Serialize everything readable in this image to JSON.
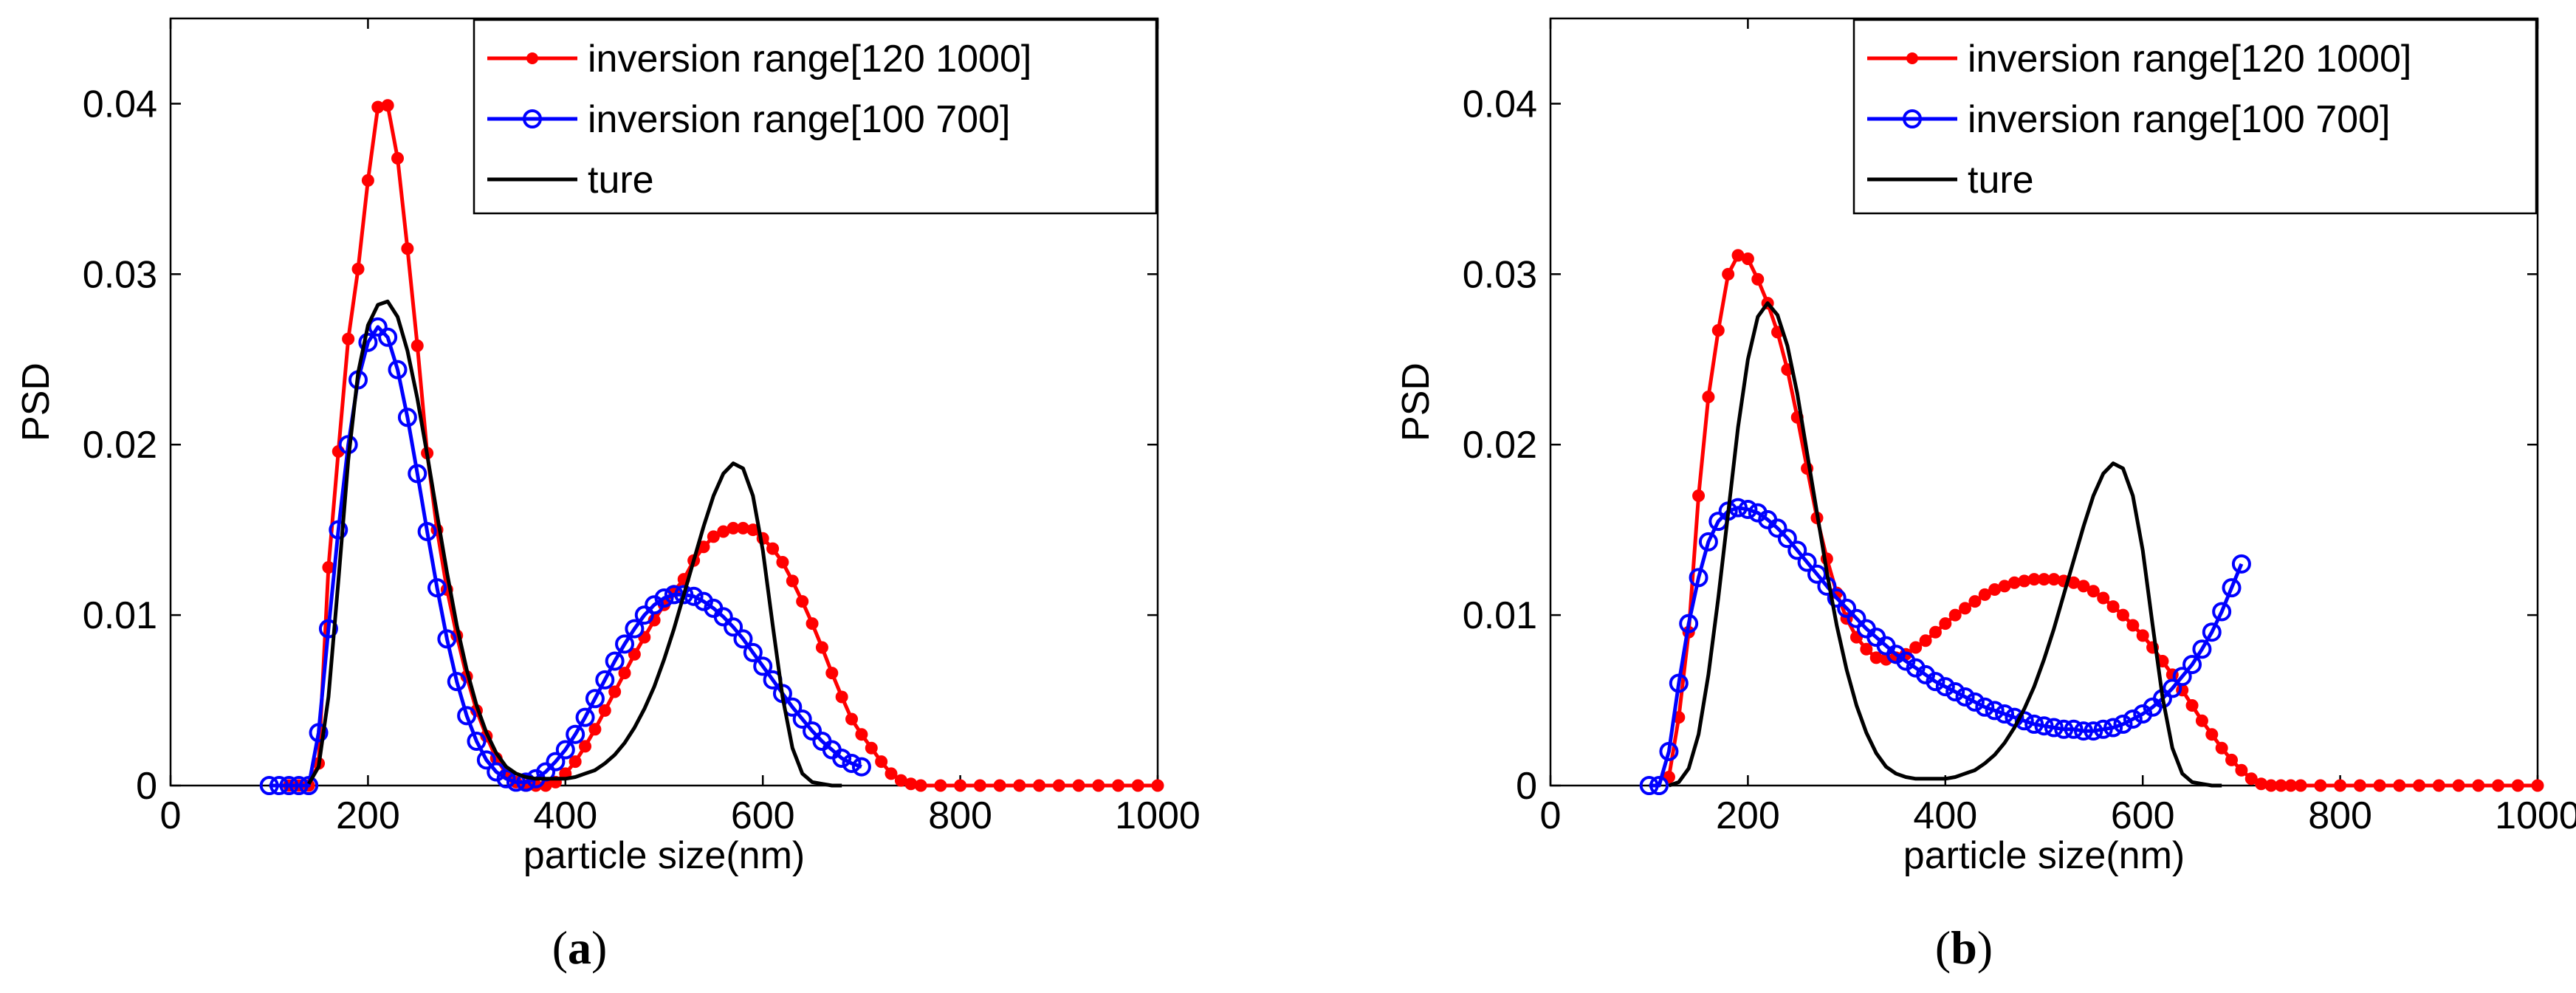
{
  "chart_data": [
    {
      "type": "line",
      "panel_label": "a",
      "title": "",
      "xlabel": "particle size(nm)",
      "ylabel": "PSD",
      "xlim": [
        0,
        1000
      ],
      "ylim": [
        0,
        0.045
      ],
      "xticks": [
        0,
        200,
        400,
        600,
        800,
        1000
      ],
      "xtick_labels": [
        "0",
        "200",
        "400",
        "600",
        "800",
        "1000"
      ],
      "yticks": [
        0,
        0.01,
        0.02,
        0.03,
        0.04
      ],
      "ytick_labels": [
        "0",
        "0.01",
        "0.02",
        "0.03",
        "0.04"
      ],
      "grid": false,
      "legend_position": "top-right",
      "series": [
        {
          "name": "inversion range[120 1000]",
          "color": "#ff0000",
          "marker": "dot",
          "x": [
            120,
            130,
            140,
            150,
            160,
            170,
            180,
            190,
            200,
            210,
            220,
            230,
            240,
            250,
            260,
            270,
            280,
            290,
            300,
            310,
            320,
            330,
            340,
            350,
            360,
            370,
            380,
            390,
            400,
            410,
            420,
            430,
            440,
            450,
            460,
            470,
            480,
            490,
            500,
            510,
            520,
            530,
            540,
            550,
            560,
            570,
            580,
            590,
            600,
            610,
            620,
            630,
            640,
            650,
            660,
            670,
            680,
            690,
            700,
            710,
            720,
            730,
            740,
            750,
            760,
            780,
            800,
            820,
            840,
            860,
            880,
            900,
            920,
            940,
            960,
            980,
            1000
          ],
          "y": [
            0,
            0,
            0,
            0.0013,
            0.0128,
            0.0196,
            0.0262,
            0.0303,
            0.0355,
            0.0398,
            0.0399,
            0.0368,
            0.0315,
            0.0258,
            0.0195,
            0.015,
            0.0115,
            0.0088,
            0.0064,
            0.0044,
            0.0029,
            0.0016,
            0.0007,
            0.0002,
            0,
            0,
            0,
            0.0002,
            0.0007,
            0.0014,
            0.0023,
            0.0033,
            0.0044,
            0.0055,
            0.0066,
            0.0077,
            0.0087,
            0.0097,
            0.0106,
            0.0114,
            0.0121,
            0.0132,
            0.014,
            0.0146,
            0.0149,
            0.0151,
            0.0151,
            0.015,
            0.0145,
            0.0139,
            0.0131,
            0.012,
            0.0108,
            0.0095,
            0.0081,
            0.0066,
            0.0052,
            0.0039,
            0.003,
            0.0022,
            0.0014,
            0.0007,
            0.0003,
            0.0001,
            0,
            0,
            0,
            0,
            0,
            0,
            0,
            0,
            0,
            0,
            0,
            0,
            0
          ]
        },
        {
          "name": "inversion range[100 700]",
          "color": "#0000ff",
          "marker": "circle",
          "x": [
            100,
            110,
            120,
            130,
            140,
            150,
            160,
            170,
            180,
            190,
            200,
            210,
            220,
            230,
            240,
            250,
            260,
            270,
            280,
            290,
            300,
            310,
            320,
            330,
            340,
            350,
            360,
            370,
            380,
            390,
            400,
            410,
            420,
            430,
            440,
            450,
            460,
            470,
            480,
            490,
            500,
            510,
            520,
            530,
            540,
            550,
            560,
            570,
            580,
            590,
            600,
            610,
            620,
            630,
            640,
            650,
            660,
            670,
            680,
            690,
            700
          ],
          "y": [
            0,
            0,
            0,
            0,
            0,
            0.0031,
            0.0092,
            0.015,
            0.02,
            0.0238,
            0.026,
            0.0269,
            0.0263,
            0.0244,
            0.0216,
            0.0183,
            0.0149,
            0.0116,
            0.0086,
            0.0061,
            0.0041,
            0.0026,
            0.0015,
            0.0008,
            0.0004,
            0.0002,
            0.0002,
            0.0004,
            0.0008,
            0.0014,
            0.0021,
            0.003,
            0.004,
            0.0051,
            0.0062,
            0.0073,
            0.0083,
            0.0092,
            0.01,
            0.0106,
            0.011,
            0.0112,
            0.0112,
            0.0111,
            0.0108,
            0.0104,
            0.0099,
            0.0093,
            0.0086,
            0.0078,
            0.007,
            0.0062,
            0.0054,
            0.0046,
            0.0039,
            0.0032,
            0.0026,
            0.0021,
            0.0016,
            0.0013,
            0.0011
          ]
        },
        {
          "name": "ture",
          "color": "#000000",
          "marker": "none",
          "x": [
            140,
            150,
            160,
            170,
            180,
            190,
            200,
            210,
            220,
            230,
            240,
            250,
            260,
            270,
            280,
            290,
            300,
            310,
            320,
            330,
            340,
            350,
            360,
            370,
            380,
            390,
            400,
            410,
            420,
            430,
            440,
            450,
            460,
            470,
            480,
            490,
            500,
            510,
            520,
            530,
            540,
            550,
            560,
            570,
            580,
            590,
            600,
            610,
            620,
            630,
            640,
            650,
            660,
            670,
            680
          ],
          "y": [
            0.0001,
            0.0011,
            0.0052,
            0.012,
            0.0191,
            0.0242,
            0.027,
            0.0282,
            0.0284,
            0.0275,
            0.0255,
            0.0227,
            0.0194,
            0.0159,
            0.0125,
            0.0094,
            0.0068,
            0.0047,
            0.0031,
            0.0019,
            0.0011,
            0.0007,
            0.0005,
            0.0004,
            0.0004,
            0.0004,
            0.0004,
            0.0005,
            0.0007,
            0.0009,
            0.0013,
            0.0018,
            0.0025,
            0.0034,
            0.0045,
            0.0058,
            0.0074,
            0.0092,
            0.0112,
            0.0132,
            0.0152,
            0.017,
            0.0183,
            0.0189,
            0.0186,
            0.017,
            0.0138,
            0.0094,
            0.0052,
            0.0022,
            0.0007,
            0.0002,
            0.0001,
            0,
            0
          ]
        }
      ]
    },
    {
      "type": "line",
      "panel_label": "b",
      "title": "",
      "xlabel": "particle size(nm)",
      "ylabel": "PSD",
      "xlim": [
        0,
        1000
      ],
      "ylim": [
        0,
        0.045
      ],
      "xticks": [
        0,
        200,
        400,
        600,
        800,
        1000
      ],
      "xtick_labels": [
        "0",
        "200",
        "400",
        "600",
        "800",
        "1000"
      ],
      "yticks": [
        0,
        0.01,
        0.02,
        0.03,
        0.04
      ],
      "ytick_labels": [
        "0",
        "0.01",
        "0.02",
        "0.03",
        "0.04"
      ],
      "grid": false,
      "legend_position": "top-right",
      "series": [
        {
          "name": "inversion range[120 1000]",
          "color": "#ff0000",
          "marker": "dot",
          "x": [
            120,
            130,
            140,
            150,
            160,
            170,
            180,
            190,
            200,
            210,
            220,
            230,
            240,
            250,
            260,
            270,
            280,
            290,
            300,
            310,
            320,
            330,
            340,
            350,
            360,
            370,
            380,
            390,
            400,
            410,
            420,
            430,
            440,
            450,
            460,
            470,
            480,
            490,
            500,
            510,
            520,
            530,
            540,
            550,
            560,
            570,
            580,
            590,
            600,
            610,
            620,
            630,
            640,
            650,
            660,
            670,
            680,
            690,
            700,
            710,
            720,
            730,
            740,
            750,
            760,
            780,
            800,
            820,
            840,
            860,
            880,
            900,
            920,
            940,
            960,
            980,
            1000
          ],
          "y": [
            0.0005,
            0.004,
            0.009,
            0.017,
            0.0228,
            0.0267,
            0.03,
            0.0311,
            0.0309,
            0.0297,
            0.0283,
            0.0266,
            0.0244,
            0.0216,
            0.0186,
            0.0157,
            0.0133,
            0.0113,
            0.0098,
            0.0087,
            0.008,
            0.0075,
            0.0074,
            0.0075,
            0.0077,
            0.0081,
            0.0085,
            0.009,
            0.0095,
            0.01,
            0.0104,
            0.0108,
            0.0112,
            0.0115,
            0.0117,
            0.0119,
            0.012,
            0.0121,
            0.0121,
            0.0121,
            0.012,
            0.0119,
            0.0117,
            0.0114,
            0.011,
            0.0105,
            0.01,
            0.0094,
            0.0088,
            0.0081,
            0.0073,
            0.0065,
            0.0056,
            0.0047,
            0.0038,
            0.003,
            0.0022,
            0.0015,
            0.0009,
            0.0004,
            0.0001,
            0,
            0,
            0,
            0,
            0,
            0,
            0,
            0,
            0,
            0,
            0,
            0,
            0,
            0,
            0,
            0
          ]
        },
        {
          "name": "inversion range[100 700]",
          "color": "#0000ff",
          "marker": "circle",
          "x": [
            100,
            110,
            120,
            130,
            140,
            150,
            160,
            170,
            180,
            190,
            200,
            210,
            220,
            230,
            240,
            250,
            260,
            270,
            280,
            290,
            300,
            310,
            320,
            330,
            340,
            350,
            360,
            370,
            380,
            390,
            400,
            410,
            420,
            430,
            440,
            450,
            460,
            470,
            480,
            490,
            500,
            510,
            520,
            530,
            540,
            550,
            560,
            570,
            580,
            590,
            600,
            610,
            620,
            630,
            640,
            650,
            660,
            670,
            680,
            690,
            700
          ],
          "y": [
            0,
            0,
            0.002,
            0.006,
            0.0095,
            0.0122,
            0.0143,
            0.0155,
            0.0161,
            0.0163,
            0.0162,
            0.016,
            0.0156,
            0.0151,
            0.0145,
            0.0138,
            0.0131,
            0.0124,
            0.0117,
            0.011,
            0.0104,
            0.0098,
            0.0092,
            0.0087,
            0.0082,
            0.0077,
            0.0073,
            0.0069,
            0.0065,
            0.0061,
            0.0058,
            0.0055,
            0.0052,
            0.0049,
            0.0046,
            0.0044,
            0.0042,
            0.004,
            0.0038,
            0.0036,
            0.0035,
            0.0034,
            0.0033,
            0.0033,
            0.0032,
            0.0032,
            0.0033,
            0.0034,
            0.0036,
            0.0039,
            0.0042,
            0.0046,
            0.0051,
            0.0057,
            0.0064,
            0.0071,
            0.008,
            0.009,
            0.0102,
            0.0116,
            0.013
          ]
        },
        {
          "name": "ture",
          "color": "#000000",
          "marker": "none",
          "x": [
            120,
            130,
            140,
            150,
            160,
            170,
            180,
            190,
            200,
            210,
            220,
            230,
            240,
            250,
            260,
            270,
            280,
            290,
            300,
            310,
            320,
            330,
            340,
            350,
            360,
            370,
            380,
            390,
            400,
            410,
            420,
            430,
            440,
            450,
            460,
            470,
            480,
            490,
            500,
            510,
            520,
            530,
            540,
            550,
            560,
            570,
            580,
            590,
            600,
            610,
            620,
            630,
            640,
            650,
            660,
            670,
            680
          ],
          "y": [
            0.0,
            0.0002,
            0.001,
            0.003,
            0.0065,
            0.011,
            0.016,
            0.021,
            0.025,
            0.0275,
            0.0283,
            0.0276,
            0.0258,
            0.023,
            0.0195,
            0.016,
            0.0125,
            0.0094,
            0.0068,
            0.0047,
            0.0031,
            0.0019,
            0.0011,
            0.0007,
            0.0005,
            0.0004,
            0.0004,
            0.0004,
            0.0004,
            0.0005,
            0.0007,
            0.0009,
            0.0013,
            0.0018,
            0.0025,
            0.0034,
            0.0045,
            0.0058,
            0.0074,
            0.0092,
            0.0112,
            0.0132,
            0.0152,
            0.017,
            0.0183,
            0.0189,
            0.0186,
            0.017,
            0.0138,
            0.0094,
            0.0052,
            0.0022,
            0.0007,
            0.0002,
            0.0001,
            0,
            0
          ]
        }
      ]
    }
  ]
}
